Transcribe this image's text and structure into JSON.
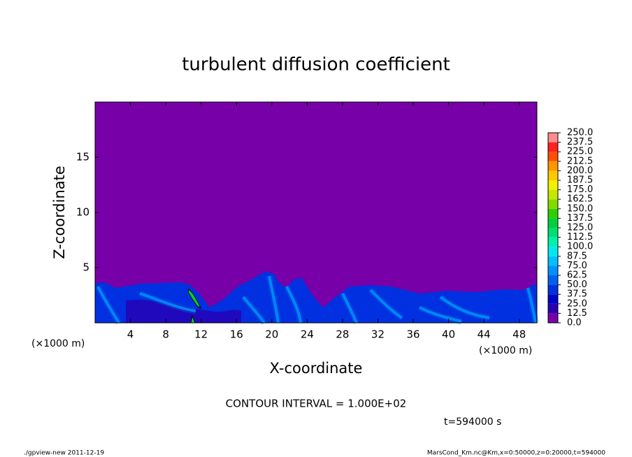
{
  "chart_data": {
    "type": "contour",
    "title": "turbulent diffusion coefficient",
    "xlabel": "X-coordinate",
    "ylabel": "Z-coordinate",
    "x_unit_left": "(×1000 m)",
    "x_unit_right": "(×1000 m)",
    "xlim": [
      0,
      50
    ],
    "xticks": [
      4,
      8,
      12,
      16,
      20,
      24,
      28,
      32,
      36,
      40,
      44,
      48
    ],
    "ylim": [
      0,
      20
    ],
    "yticks": [
      5,
      10,
      15
    ],
    "colorbar": {
      "lim": [
        0,
        250
      ],
      "ticks": [
        {
          "value": 0,
          "label": "0.0"
        },
        12.5,
        {
          "value": 25,
          "label": "25.0"
        },
        37.5,
        {
          "value": 50,
          "label": "50.0"
        },
        62.5,
        {
          "value": 75,
          "label": "75.0"
        },
        87.5,
        {
          "value": 100,
          "label": "100.0"
        },
        112.5,
        {
          "value": 125,
          "label": "125.0"
        },
        137.5,
        {
          "value": 150,
          "label": "150.0"
        },
        162.5,
        {
          "value": 175,
          "label": "175.0"
        },
        187.5,
        {
          "value": 200,
          "label": "200.0"
        },
        212.5,
        {
          "value": 225,
          "label": "225.0"
        },
        237.5,
        {
          "value": 250,
          "label": "250.0"
        }
      ],
      "colors": [
        "#7800a8",
        "#2800b4",
        "#0000c8",
        "#0030e0",
        "#0060f0",
        "#0090ff",
        "#00c0ff",
        "#00e8f0",
        "#00f0b0",
        "#00e070",
        "#00d040",
        "#30d000",
        "#80dc00",
        "#c8e600",
        "#f0f000",
        "#ffc800",
        "#ff9600",
        "#ff5000",
        "#ff2020",
        "#ff8c8c"
      ]
    },
    "annotation": "CONTOUR INTERVAL = 1.000E+02",
    "time_label": "t=594000 s",
    "footer_left": "./gpview-new  2011-12-19",
    "footer_right": "MarsCond_Km.nc@Km,x=0:50000,z=0:20000,t=594000"
  }
}
